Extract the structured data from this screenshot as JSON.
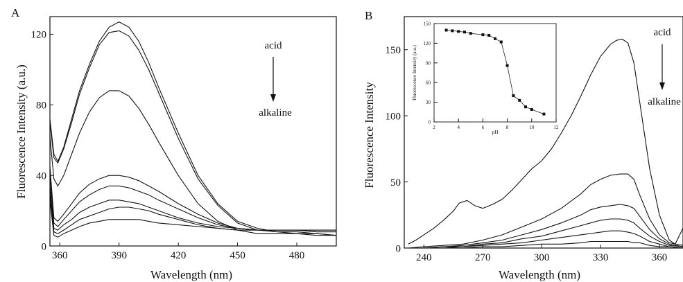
{
  "chart_data": [
    {
      "panel": "A",
      "type": "line",
      "xlabel": "Wavelength (nm)",
      "ylabel": "Fluorescence Intensity (a.u.)",
      "xlim": [
        355,
        500
      ],
      "ylim": [
        0,
        130
      ],
      "xticks": [
        360,
        390,
        420,
        450,
        480
      ],
      "yticks": [
        0,
        40,
        80,
        120
      ],
      "annotation": {
        "top": "acid",
        "bottom": "alkaline"
      },
      "series": [
        {
          "x": [
            355,
            357,
            359,
            362,
            366,
            370,
            375,
            380,
            385,
            390,
            395,
            400,
            405,
            410,
            420,
            430,
            440,
            450,
            460,
            470,
            480,
            490,
            500
          ],
          "y": [
            72,
            52,
            48,
            56,
            72,
            88,
            103,
            116,
            124,
            127,
            124,
            116,
            104,
            90,
            64,
            40,
            24,
            14,
            10,
            8,
            8,
            7,
            6
          ]
        },
        {
          "x": [
            355,
            357,
            359,
            362,
            366,
            370,
            375,
            380,
            385,
            390,
            395,
            400,
            405,
            410,
            420,
            430,
            440,
            450,
            460,
            470,
            480,
            490,
            500
          ],
          "y": [
            70,
            50,
            47,
            55,
            70,
            86,
            101,
            114,
            121,
            122,
            119,
            111,
            100,
            87,
            61,
            38,
            23,
            13,
            9,
            8,
            7,
            7,
            6
          ]
        },
        {
          "x": [
            355,
            357,
            359,
            362,
            366,
            370,
            375,
            380,
            385,
            390,
            395,
            400,
            405,
            410,
            420,
            430,
            440,
            450,
            460,
            470,
            480,
            490,
            500
          ],
          "y": [
            62,
            38,
            34,
            40,
            52,
            64,
            76,
            84,
            88,
            88,
            85,
            78,
            69,
            59,
            40,
            24,
            14,
            9,
            7,
            7,
            7,
            6,
            6
          ]
        },
        {
          "x": [
            355,
            357,
            359,
            362,
            366,
            370,
            375,
            380,
            385,
            390,
            395,
            400,
            405,
            410,
            420,
            430,
            440,
            450,
            460,
            470,
            480,
            490,
            500
          ],
          "y": [
            45,
            16,
            14,
            18,
            24,
            30,
            35,
            38,
            40,
            40,
            39,
            37,
            34,
            31,
            24,
            18,
            13,
            10,
            9,
            9,
            9,
            8,
            8
          ]
        },
        {
          "x": [
            355,
            357,
            359,
            362,
            366,
            370,
            375,
            380,
            385,
            390,
            395,
            400,
            405,
            410,
            420,
            430,
            440,
            450,
            460,
            470,
            480,
            490,
            500
          ],
          "y": [
            40,
            13,
            11,
            15,
            20,
            25,
            29,
            32,
            34,
            34,
            33,
            31,
            29,
            26,
            21,
            16,
            12,
            10,
            9,
            9,
            9,
            8,
            8
          ]
        },
        {
          "x": [
            355,
            357,
            359,
            362,
            366,
            370,
            375,
            380,
            385,
            390,
            395,
            400,
            405,
            410,
            420,
            430,
            440,
            450,
            460,
            470,
            480,
            490,
            500
          ],
          "y": [
            34,
            10,
            9,
            12,
            15,
            19,
            22,
            24,
            26,
            26,
            25,
            24,
            22,
            20,
            16,
            13,
            11,
            10,
            9,
            9,
            9,
            9,
            9
          ]
        },
        {
          "x": [
            355,
            357,
            359,
            362,
            366,
            370,
            375,
            380,
            385,
            390,
            395,
            400,
            405,
            410,
            420,
            430,
            440,
            450,
            460,
            470,
            480,
            490,
            500
          ],
          "y": [
            30,
            8,
            7,
            9,
            12,
            15,
            17,
            19,
            21,
            22,
            22,
            21,
            20,
            18,
            15,
            12,
            10,
            9,
            9,
            9,
            9,
            9,
            9
          ]
        },
        {
          "x": [
            355,
            357,
            359,
            362,
            366,
            370,
            375,
            380,
            385,
            390,
            395,
            400,
            405,
            410,
            420,
            430,
            440,
            450,
            460,
            470,
            480,
            490,
            500
          ],
          "y": [
            26,
            6,
            5,
            7,
            9,
            11,
            13,
            14,
            15,
            15,
            15,
            15,
            14,
            13,
            12,
            11,
            10,
            9,
            9,
            9,
            9,
            9,
            9
          ]
        }
      ]
    },
    {
      "panel": "B",
      "type": "line",
      "xlabel": "Wavelength (nm)",
      "ylabel": "Fluorescence Intensity",
      "xlim": [
        230,
        372
      ],
      "ylim": [
        0,
        175
      ],
      "xticks": [
        240,
        270,
        300,
        330,
        360
      ],
      "yticks": [
        0,
        50,
        100,
        150
      ],
      "annotation": {
        "top": "acid",
        "bottom": "alkaline"
      },
      "series": [
        {
          "x": [
            232,
            236,
            240,
            245,
            250,
            255,
            258,
            262,
            266,
            270,
            275,
            280,
            285,
            290,
            295,
            300,
            305,
            310,
            315,
            320,
            325,
            330,
            335,
            338,
            341,
            344,
            347,
            350,
            355,
            360,
            365,
            368,
            372
          ],
          "y": [
            3,
            6,
            10,
            15,
            21,
            28,
            34,
            36,
            32,
            30,
            33,
            37,
            44,
            52,
            60,
            66,
            75,
            87,
            100,
            115,
            131,
            145,
            154,
            157,
            158,
            155,
            140,
            110,
            60,
            25,
            6,
            3,
            15
          ]
        },
        {
          "x": [
            232,
            240,
            250,
            260,
            270,
            280,
            290,
            300,
            310,
            320,
            325,
            330,
            335,
            340,
            344,
            347,
            350,
            355,
            360,
            365,
            372
          ],
          "y": [
            0,
            1,
            2,
            3,
            6,
            10,
            16,
            22,
            30,
            41,
            48,
            52,
            55,
            56,
            56,
            52,
            40,
            22,
            10,
            4,
            2
          ]
        },
        {
          "x": [
            232,
            240,
            250,
            260,
            270,
            280,
            290,
            300,
            310,
            320,
            325,
            330,
            335,
            340,
            344,
            347,
            350,
            355,
            360,
            365,
            372
          ],
          "y": [
            0,
            0,
            1,
            2,
            4,
            6,
            10,
            14,
            19,
            25,
            29,
            31,
            32,
            33,
            32,
            30,
            24,
            14,
            7,
            3,
            1
          ]
        },
        {
          "x": [
            232,
            240,
            250,
            260,
            270,
            280,
            290,
            300,
            310,
            320,
            325,
            330,
            335,
            340,
            344,
            347,
            350,
            355,
            360,
            365,
            372
          ],
          "y": [
            0,
            0,
            1,
            1,
            3,
            4,
            7,
            9,
            13,
            17,
            19,
            21,
            22,
            22,
            21,
            19,
            15,
            9,
            5,
            2,
            1
          ]
        },
        {
          "x": [
            232,
            240,
            250,
            260,
            270,
            280,
            290,
            300,
            310,
            320,
            325,
            330,
            335,
            340,
            344,
            347,
            350,
            355,
            360,
            365,
            372
          ],
          "y": [
            0,
            0,
            0,
            1,
            2,
            3,
            4,
            6,
            8,
            10,
            11,
            12,
            13,
            13,
            12,
            11,
            9,
            5,
            3,
            1,
            0
          ]
        },
        {
          "x": [
            232,
            240,
            250,
            260,
            270,
            280,
            290,
            300,
            310,
            320,
            325,
            330,
            335,
            340,
            344,
            347,
            350,
            355,
            360,
            365,
            372
          ],
          "y": [
            0,
            0,
            0,
            0,
            1,
            1,
            2,
            3,
            3,
            4,
            5,
            5,
            5,
            5,
            5,
            4,
            4,
            2,
            1,
            1,
            0
          ]
        }
      ],
      "inset": {
        "type": "line",
        "xlabel": "pH",
        "ylabel": "Fluorescence Intensity (a.u.)",
        "xlim": [
          2,
          12
        ],
        "ylim": [
          0,
          150
        ],
        "xticks": [
          2,
          4,
          6,
          8,
          10,
          12
        ],
        "yticks": [
          0,
          30,
          60,
          90,
          120,
          150
        ],
        "x": [
          3,
          3.5,
          4,
          4.5,
          5,
          6,
          6.5,
          7,
          7.5,
          8,
          8.5,
          9,
          9.5,
          10,
          11
        ],
        "y": [
          140,
          139,
          138,
          137,
          135,
          133,
          132,
          127,
          122,
          86,
          40,
          33,
          23,
          19,
          12
        ]
      }
    }
  ],
  "panel_labels": {
    "a": "A",
    "b": "B"
  }
}
